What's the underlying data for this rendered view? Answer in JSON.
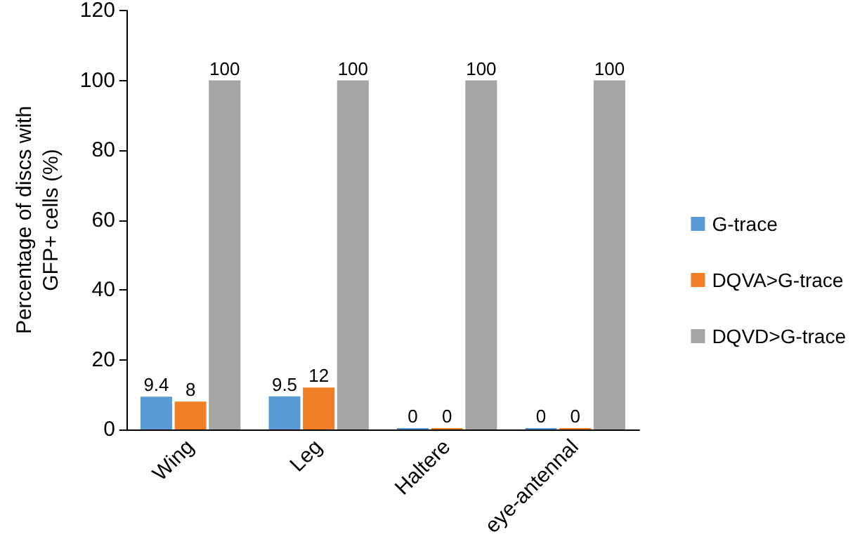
{
  "chart_data": {
    "type": "bar",
    "ylabel": "Percentage of discs with\nGFP+ cells (%)",
    "categories": [
      "Wing",
      "Leg",
      "Haltere",
      "eye-antennal"
    ],
    "series": [
      {
        "name": "G-trace",
        "color": "#5b9bd5",
        "values": [
          9.4,
          9.5,
          0,
          0
        ]
      },
      {
        "name": "DQVA>G-trace",
        "color": "#f07f28",
        "values": [
          8,
          12,
          0,
          0
        ]
      },
      {
        "name": "DQVD>G-trace",
        "color": "#a5a5a5",
        "values": [
          100,
          100,
          100,
          100
        ]
      }
    ],
    "ylim": [
      0,
      120
    ],
    "yticks": [
      0,
      20,
      40,
      60,
      80,
      100,
      120
    ],
    "grid": false,
    "legend": "right",
    "data_labels": true
  }
}
